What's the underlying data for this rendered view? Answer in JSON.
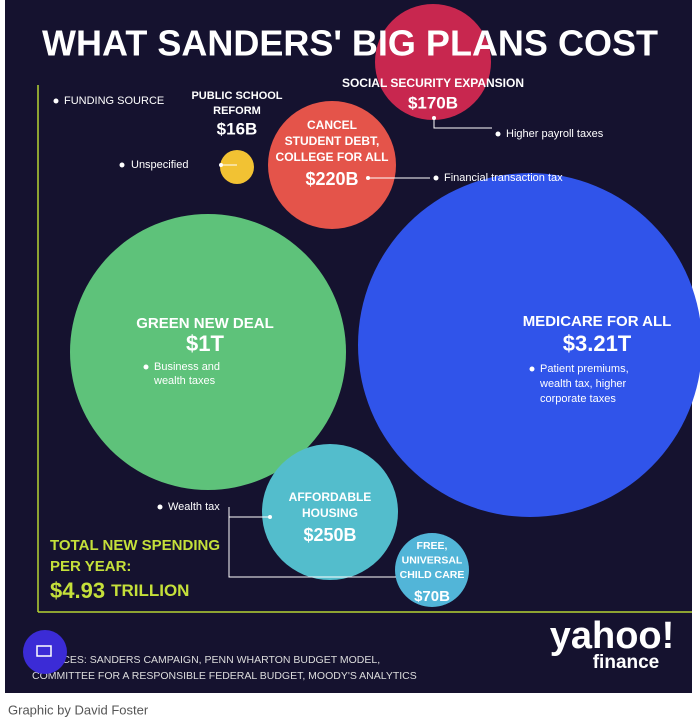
{
  "title": "WHAT SANDERS' BIG PLANS COST",
  "legend_label": "FUNDING SOURCE",
  "annotations": [
    "Unspecified",
    "Higher payroll taxes",
    "Financial transaction tax",
    "Wealth tax",
    "Business and\nwealth taxes",
    "Patient premiums,\nwealth tax, higher\ncorporate taxes"
  ],
  "chart_data": {
    "type": "bubble",
    "categories": [
      "SOCIAL SECURITY EXPANSION",
      "PUBLIC SCHOOL\nREFORM",
      "CANCEL\nSTUDENT DEBT,\nCOLLEGE FOR ALL",
      "GREEN NEW DEAL",
      "MEDICARE FOR ALL",
      "AFFORDABLE\nHOUSING",
      "FREE,\nUNIVERSAL\nCHILD CARE"
    ],
    "values": [
      170000000000,
      16000000000,
      220000000000,
      1000000000000,
      3210000000000,
      250000000000,
      70000000000
    ],
    "value_labels": [
      "$170B",
      "$16B",
      "$220B",
      "$1T",
      "$3.21T",
      "$250B",
      "$70B"
    ],
    "colors": [
      "#c8274f",
      "#f2c233",
      "#e4544a",
      "#5ec27a",
      "#3054ea",
      "#53bdcc",
      "#52b5d8"
    ]
  },
  "total": {
    "label": "TOTAL NEW SPENDING\nPER YEAR:",
    "value": "$4.93",
    "unit": "TRILLION"
  },
  "sources": "SOURCES: SANDERS CAMPAIGN, PENN WHARTON BUDGET MODEL,\nCOMMITTEE FOR A RESPONSIBLE FEDERAL BUDGET, MOODY'S ANALYTICS",
  "logo": {
    "brand": "yahoo!",
    "sub": "finance"
  },
  "caption": "Graphic by David Foster"
}
